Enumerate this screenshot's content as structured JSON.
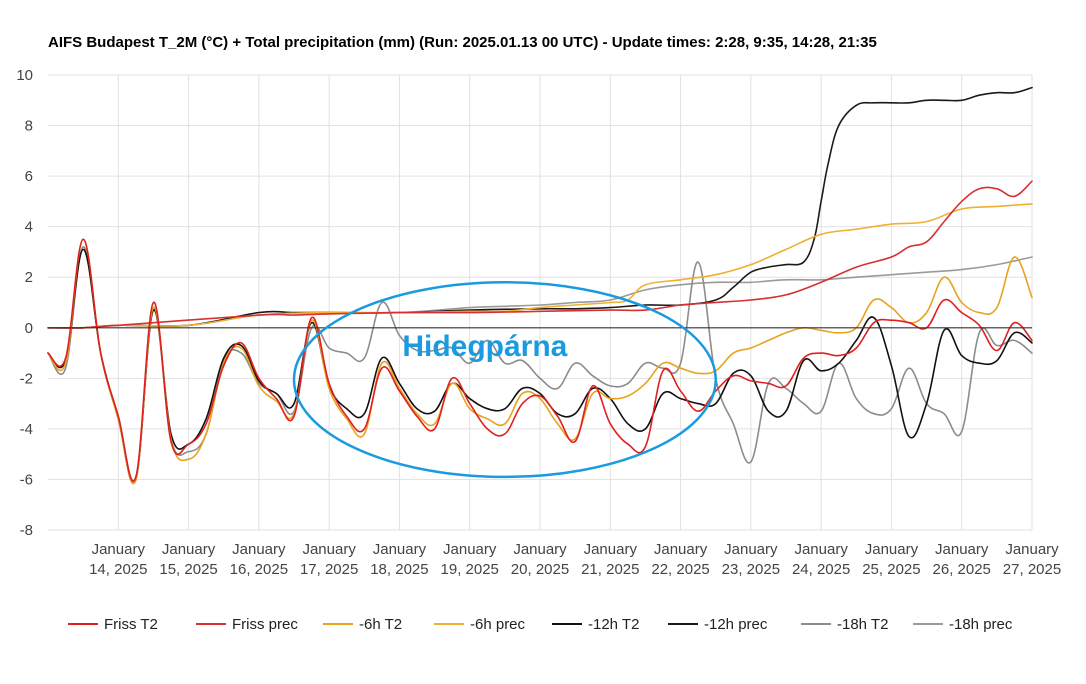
{
  "chart_data": {
    "type": "line",
    "title": "AIFS Budapest T_2M (°C) + Total precipitation (mm) (Run: 2025.01.13 00 UTC) - Update times: 2:28, 9:35, 14:28, 21:35",
    "xlabel": "",
    "ylabel": "",
    "xlim": [
      13.0,
      27.0
    ],
    "ylim": [
      -8,
      10
    ],
    "yticks": [
      "10",
      "8",
      "6",
      "4",
      "2",
      "0",
      "-2",
      "-4",
      "-6",
      "-8"
    ],
    "ytick_values": [
      10,
      8,
      6,
      4,
      2,
      0,
      -2,
      -4,
      -6,
      -8
    ],
    "xtick_values": [
      14,
      15,
      16,
      17,
      18,
      19,
      20,
      21,
      22,
      23,
      24,
      25,
      26,
      27
    ],
    "xtick_line1": [
      "January",
      "January",
      "January",
      "January",
      "January",
      "January",
      "January",
      "January",
      "January",
      "January",
      "January",
      "January",
      "January",
      "January"
    ],
    "xtick_line2": [
      "14, 2025",
      "15, 2025",
      "16, 2025",
      "17, 2025",
      "18, 2025",
      "19, 2025",
      "20, 2025",
      "21, 2025",
      "22, 2025",
      "23, 2025",
      "24, 2025",
      "25, 2025",
      "26, 2025",
      "27, 2025"
    ],
    "annotation": {
      "text": "Hidegpárna",
      "x_range": [
        16.5,
        22.5
      ],
      "y_range": [
        -5.9,
        1.8
      ],
      "color": "#1a9be0"
    },
    "series": [
      {
        "name": "Friss T2",
        "color": "#e02020",
        "width": 1.6,
        "x": [
          13.0,
          13.25,
          13.5,
          13.75,
          14.0,
          14.25,
          14.5,
          14.75,
          15.0,
          15.25,
          15.5,
          15.75,
          16.0,
          16.25,
          16.5,
          16.75,
          17.0,
          17.25,
          17.5,
          17.75,
          18.0,
          18.25,
          18.5,
          18.75,
          19.0,
          19.25,
          19.5,
          19.75,
          20.0,
          20.25,
          20.5,
          20.75,
          21.0,
          21.25,
          21.5,
          21.75,
          22.0,
          22.25,
          22.5,
          22.75,
          23.0,
          23.25,
          23.5,
          23.75,
          24.0,
          24.25,
          24.5,
          24.75,
          25.0,
          25.25,
          25.5,
          25.75,
          26.0,
          26.25,
          26.5,
          26.75,
          27.0
        ],
        "values": [
          -1.0,
          -1.2,
          3.5,
          -1.0,
          -3.5,
          -5.9,
          1.0,
          -4.5,
          -4.6,
          -3.8,
          -1.5,
          -0.6,
          -2.0,
          -2.8,
          -3.5,
          0.4,
          -2.2,
          -3.5,
          -4.0,
          -1.6,
          -2.5,
          -3.5,
          -4.0,
          -2.0,
          -3.0,
          -4.0,
          -4.2,
          -3.0,
          -2.7,
          -3.5,
          -4.5,
          -2.3,
          -3.8,
          -4.6,
          -4.7,
          -1.7,
          -2.5,
          -3.3,
          -2.5,
          -1.9,
          -2.1,
          -2.2,
          -2.3,
          -1.2,
          -1.0,
          -1.1,
          -0.8,
          0.2,
          0.3,
          0.2,
          0.0,
          1.1,
          0.6,
          0.1,
          -0.9,
          0.2,
          -0.5
        ]
      },
      {
        "name": "Friss prec",
        "color": "#d83030",
        "width": 1.6,
        "x": [
          13.0,
          13.25,
          13.5,
          14.0,
          16.0,
          16.5,
          17.0,
          18.0,
          19.0,
          20.0,
          21.0,
          21.5,
          22.0,
          22.5,
          23.0,
          23.5,
          24.0,
          24.5,
          25.0,
          25.25,
          25.5,
          25.75,
          26.0,
          26.25,
          26.5,
          26.75,
          27.0
        ],
        "values": [
          0,
          0,
          0,
          0.1,
          0.5,
          0.5,
          0.55,
          0.6,
          0.6,
          0.65,
          0.7,
          0.7,
          0.9,
          1.0,
          1.1,
          1.3,
          1.8,
          2.4,
          2.8,
          3.2,
          3.4,
          4.2,
          5.0,
          5.5,
          5.5,
          5.2,
          5.8
        ]
      },
      {
        "name": "-6h T2",
        "color": "#e8a31c",
        "width": 1.6,
        "x": [
          13.0,
          13.25,
          13.5,
          13.75,
          14.0,
          14.25,
          14.5,
          14.75,
          15.0,
          15.25,
          15.5,
          15.75,
          16.0,
          16.25,
          16.5,
          16.75,
          17.0,
          17.25,
          17.5,
          17.75,
          18.0,
          18.25,
          18.5,
          18.75,
          19.0,
          19.25,
          19.5,
          19.75,
          20.0,
          20.25,
          20.5,
          20.75,
          21.0,
          21.25,
          21.5,
          21.75,
          22.0,
          22.25,
          22.5,
          22.75,
          23.0,
          23.25,
          23.5,
          23.75,
          24.0,
          24.25,
          24.5,
          24.75,
          25.0,
          25.25,
          25.5,
          25.75,
          26.0,
          26.25,
          26.5,
          26.75,
          27.0
        ],
        "values": [
          -1.0,
          -1.4,
          3.5,
          -1.0,
          -3.6,
          -6.0,
          0.8,
          -4.4,
          -5.2,
          -4.2,
          -1.4,
          -0.8,
          -2.3,
          -2.9,
          -3.4,
          0.3,
          -2.4,
          -3.6,
          -4.2,
          -1.4,
          -2.4,
          -3.4,
          -3.8,
          -2.2,
          -3.2,
          -3.6,
          -3.8,
          -2.6,
          -2.8,
          -3.8,
          -4.4,
          -2.6,
          -2.8,
          -2.7,
          -2.2,
          -1.4,
          -1.6,
          -1.8,
          -1.7,
          -1.0,
          -0.8,
          -0.5,
          -0.2,
          0.0,
          -0.1,
          -0.2,
          0.0,
          1.1,
          0.8,
          0.2,
          0.6,
          2.0,
          1.0,
          0.6,
          0.8,
          2.8,
          1.2
        ]
      },
      {
        "name": "-6h prec",
        "color": "#f0b030",
        "width": 1.6,
        "x": [
          13.0,
          13.5,
          14.0,
          15.0,
          16.0,
          17.0,
          18.0,
          19.0,
          19.5,
          20.0,
          20.5,
          21.0,
          21.25,
          21.5,
          22.0,
          22.5,
          23.0,
          23.5,
          24.0,
          24.5,
          25.0,
          25.5,
          26.0,
          26.5,
          27.0
        ],
        "values": [
          0,
          0,
          0.1,
          0.1,
          0.5,
          0.6,
          0.6,
          0.65,
          0.65,
          0.8,
          0.9,
          1.0,
          1.1,
          1.7,
          1.9,
          2.1,
          2.5,
          3.1,
          3.7,
          3.9,
          4.1,
          4.2,
          4.7,
          4.8,
          4.9
        ]
      },
      {
        "name": "-12h T2",
        "color": "#111111",
        "width": 1.6,
        "x": [
          13.0,
          13.25,
          13.5,
          13.75,
          14.0,
          14.25,
          14.5,
          14.75,
          15.0,
          15.25,
          15.5,
          15.75,
          16.0,
          16.25,
          16.5,
          16.75,
          17.0,
          17.25,
          17.5,
          17.75,
          18.0,
          18.25,
          18.5,
          18.75,
          19.0,
          19.25,
          19.5,
          19.75,
          20.0,
          20.25,
          20.5,
          20.75,
          21.0,
          21.25,
          21.5,
          21.75,
          22.0,
          22.25,
          22.5,
          22.75,
          23.0,
          23.25,
          23.5,
          23.75,
          24.0,
          24.25,
          24.5,
          24.75,
          25.0,
          25.25,
          25.5,
          25.75,
          26.0,
          26.25,
          26.5,
          26.75,
          27.0
        ],
        "values": [
          -1.0,
          -1.3,
          3.1,
          -1.0,
          -3.6,
          -6.0,
          0.7,
          -4.2,
          -4.6,
          -3.6,
          -1.2,
          -0.7,
          -2.1,
          -2.6,
          -3.0,
          0.2,
          -2.3,
          -3.2,
          -3.4,
          -1.2,
          -2.2,
          -3.2,
          -3.3,
          -2.2,
          -2.8,
          -3.2,
          -3.2,
          -2.4,
          -2.6,
          -3.4,
          -3.4,
          -2.4,
          -2.8,
          -3.8,
          -4.0,
          -2.6,
          -2.8,
          -3.0,
          -3.0,
          -1.8,
          -1.9,
          -3.3,
          -3.3,
          -1.3,
          -1.7,
          -1.4,
          -0.5,
          0.4,
          -1.5,
          -4.3,
          -3.0,
          -0.1,
          -1.1,
          -1.4,
          -1.3,
          -0.2,
          -0.6
        ]
      },
      {
        "name": "-12h prec",
        "color": "#1a1a1a",
        "width": 1.6,
        "x": [
          13.0,
          13.5,
          14.0,
          15.0,
          16.0,
          16.5,
          17.0,
          18.0,
          19.0,
          20.0,
          20.5,
          21.0,
          21.5,
          22.0,
          22.5,
          22.75,
          23.0,
          23.25,
          23.5,
          23.75,
          23.9,
          24.0,
          24.1,
          24.25,
          24.5,
          24.75,
          25.0,
          25.25,
          25.5,
          25.75,
          26.0,
          26.25,
          26.5,
          26.75,
          27.0
        ],
        "values": [
          0,
          0,
          0.1,
          0.1,
          0.6,
          0.6,
          0.6,
          0.6,
          0.7,
          0.75,
          0.75,
          0.8,
          0.9,
          0.9,
          1.1,
          1.6,
          2.2,
          2.4,
          2.5,
          2.6,
          3.5,
          5.0,
          6.5,
          8.0,
          8.8,
          8.9,
          8.9,
          8.9,
          9.0,
          9.0,
          9.0,
          9.2,
          9.3,
          9.3,
          9.5
        ]
      },
      {
        "name": "-18h T2",
        "color": "#8c8c8c",
        "width": 1.6,
        "x": [
          13.0,
          13.25,
          13.5,
          13.75,
          14.0,
          14.25,
          14.5,
          14.75,
          15.0,
          15.25,
          15.5,
          15.75,
          16.0,
          16.25,
          16.5,
          16.75,
          17.0,
          17.25,
          17.5,
          17.75,
          18.0,
          18.25,
          18.5,
          18.75,
          19.0,
          19.25,
          19.5,
          19.75,
          20.0,
          20.25,
          20.5,
          20.75,
          21.0,
          21.25,
          21.5,
          21.75,
          22.0,
          22.25,
          22.5,
          22.75,
          23.0,
          23.25,
          23.5,
          23.75,
          24.0,
          24.25,
          24.5,
          24.75,
          25.0,
          25.25,
          25.5,
          25.75,
          26.0,
          26.25,
          26.5,
          26.75,
          27.0
        ],
        "values": [
          -1.0,
          -1.6,
          3.2,
          -1.0,
          -3.5,
          -5.9,
          0.7,
          -4.4,
          -4.9,
          -4.2,
          -1.3,
          -1.0,
          -2.2,
          -2.6,
          -3.3,
          0.0,
          -0.8,
          -1.0,
          -1.2,
          1.0,
          -0.3,
          -0.9,
          -0.9,
          -0.8,
          -1.4,
          -0.5,
          -1.4,
          -1.3,
          -2.0,
          -2.4,
          -1.4,
          -1.9,
          -2.3,
          -2.2,
          -1.4,
          -1.6,
          -1.4,
          2.6,
          -2.0,
          -3.8,
          -5.3,
          -2.2,
          -2.4,
          -3.0,
          -3.3,
          -1.4,
          -2.8,
          -3.4,
          -3.2,
          -1.6,
          -3.0,
          -3.4,
          -4.1,
          -0.2,
          -0.7,
          -0.5,
          -1.0
        ]
      },
      {
        "name": "-18h prec",
        "color": "#9a9a9a",
        "width": 1.6,
        "x": [
          13.0,
          13.5,
          14.0,
          15.0,
          16.0,
          17.0,
          18.0,
          19.0,
          19.5,
          20.0,
          20.5,
          21.0,
          21.5,
          22.0,
          22.5,
          23.0,
          23.5,
          24.0,
          24.5,
          25.0,
          25.5,
          26.0,
          26.5,
          27.0
        ],
        "values": [
          0,
          0,
          0.1,
          0.1,
          0.5,
          0.6,
          0.6,
          0.8,
          0.85,
          0.9,
          1.0,
          1.1,
          1.5,
          1.7,
          1.8,
          1.8,
          1.9,
          1.9,
          2.0,
          2.1,
          2.2,
          2.3,
          2.5,
          2.8
        ]
      }
    ]
  }
}
